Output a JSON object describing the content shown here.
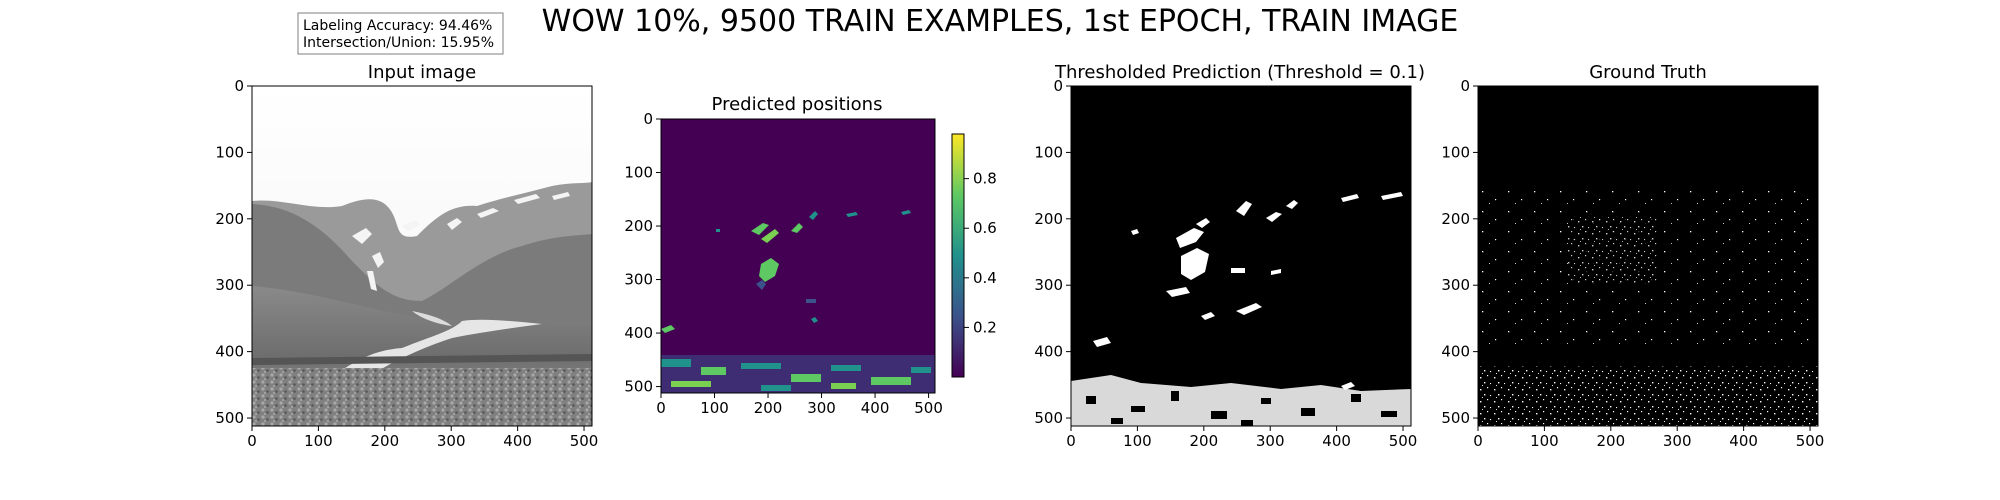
{
  "figure": {
    "suptitle": "WOW 10%, 9500 TRAIN EXAMPLES, 1st EPOCH, TRAIN IMAGE",
    "info_box": {
      "labeling_accuracy": "Labeling Accuracy:  94.46%",
      "iou": "Intersection/Union:  15.95%"
    }
  },
  "chart_data": [
    {
      "type": "image",
      "title": "Input image",
      "content": "grayscale mountain valley photograph",
      "xlim": [
        0,
        512
      ],
      "ylim": [
        512,
        0
      ],
      "xticks": [
        0,
        100,
        200,
        300,
        400,
        500
      ],
      "yticks": [
        0,
        100,
        200,
        300,
        400,
        500
      ]
    },
    {
      "type": "heatmap",
      "title": "Predicted positions",
      "colormap": "viridis",
      "background_color": "#440154",
      "xlim": [
        0,
        512
      ],
      "ylim": [
        512,
        0
      ],
      "xticks": [
        0,
        100,
        200,
        300,
        400,
        500
      ],
      "yticks": [
        0,
        100,
        200,
        300,
        400,
        500
      ],
      "colorbar": {
        "range": [
          0.0,
          0.98
        ],
        "ticks": [
          0.2,
          0.4,
          0.6,
          0.8
        ]
      },
      "colors": [
        "#440154",
        "#3b528b",
        "#21918c",
        "#5ec962",
        "#fde725"
      ]
    },
    {
      "type": "image",
      "title": "Thresholded Prediction (Threshold = 0.1)",
      "content": "binary mask, white = predicted",
      "xlim": [
        0,
        512
      ],
      "ylim": [
        512,
        0
      ],
      "xticks": [
        0,
        100,
        200,
        300,
        400,
        500
      ],
      "yticks": [
        0,
        100,
        200,
        300,
        400,
        500
      ]
    },
    {
      "type": "image",
      "title": "Ground Truth",
      "content": "binary mask, sparse white speckle",
      "xlim": [
        0,
        512
      ],
      "ylim": [
        512,
        0
      ],
      "xticks": [
        0,
        100,
        200,
        300,
        400,
        500
      ],
      "yticks": [
        0,
        100,
        200,
        300,
        400,
        500
      ]
    }
  ]
}
